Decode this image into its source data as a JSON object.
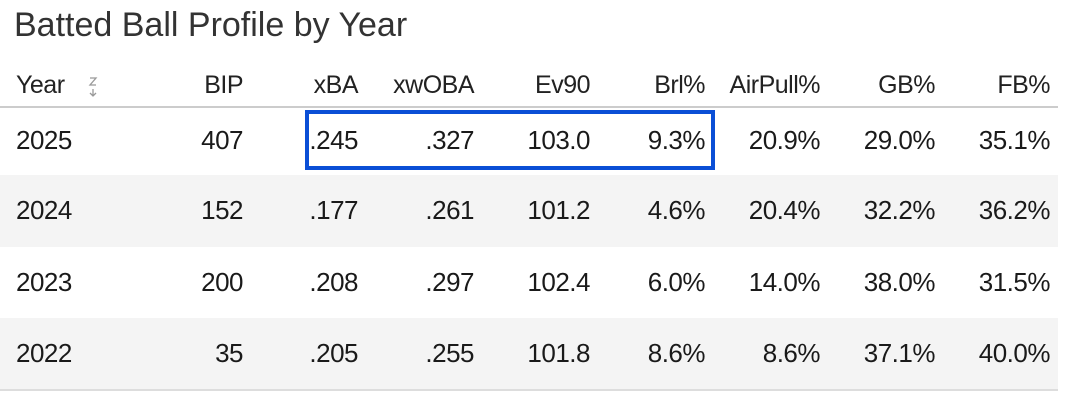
{
  "header": {
    "title": "Batted Ball Profile by Year"
  },
  "table": {
    "columns": [
      "Year",
      "BIP",
      "xBA",
      "xwOBA",
      "Ev90",
      "Brl%",
      "AirPull%",
      "GB%",
      "FB%"
    ],
    "rows": [
      [
        "2025",
        "407",
        ".245",
        ".327",
        "103.0",
        "9.3%",
        "20.9%",
        "29.0%",
        "35.1%"
      ],
      [
        "2024",
        "152",
        ".177",
        ".261",
        "101.2",
        "4.6%",
        "20.4%",
        "32.2%",
        "36.2%"
      ],
      [
        "2023",
        "200",
        ".208",
        ".297",
        "102.4",
        "6.0%",
        "14.0%",
        "38.0%",
        "31.5%"
      ],
      [
        "2022",
        "35",
        ".205",
        ".255",
        "101.8",
        "8.6%",
        "8.6%",
        "37.1%",
        "40.0%"
      ]
    ]
  }
}
